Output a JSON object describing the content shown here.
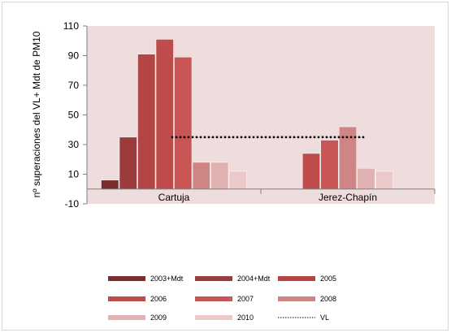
{
  "chart_data": {
    "type": "bar",
    "ylabel": "nº superaciones del VL+ Mdt de PM10",
    "xlabel": "",
    "ylim": [
      -10,
      110
    ],
    "yticks": [
      -10,
      10,
      30,
      50,
      70,
      90,
      110
    ],
    "grid": "vertical separators between categories only",
    "legend_position": "bottom",
    "categories": [
      "Cartuja",
      "Jerez-Chapín"
    ],
    "series": [
      {
        "name": "2003+Mdt",
        "color": "#7b2c2c",
        "values": [
          6,
          null
        ]
      },
      {
        "name": "2004+Mdt",
        "color": "#9c3b3b",
        "values": [
          35,
          null
        ]
      },
      {
        "name": "2005",
        "color": "#b34545",
        "values": [
          91,
          null
        ]
      },
      {
        "name": "2006",
        "color": "#c04b4b",
        "values": [
          101,
          24
        ]
      },
      {
        "name": "2007",
        "color": "#c95555",
        "values": [
          89,
          33
        ]
      },
      {
        "name": "2008",
        "color": "#d08585",
        "values": [
          18,
          42
        ]
      },
      {
        "name": "2009",
        "color": "#e0b1b1",
        "values": [
          18,
          14
        ]
      },
      {
        "name": "2010",
        "color": "#ecc8c8",
        "values": [
          12,
          12
        ]
      }
    ],
    "reference_line": {
      "name": "VL",
      "value": 35,
      "style": "dotted"
    }
  },
  "colors": {
    "plot_background": "#efdcdc",
    "axis": "#808080"
  }
}
